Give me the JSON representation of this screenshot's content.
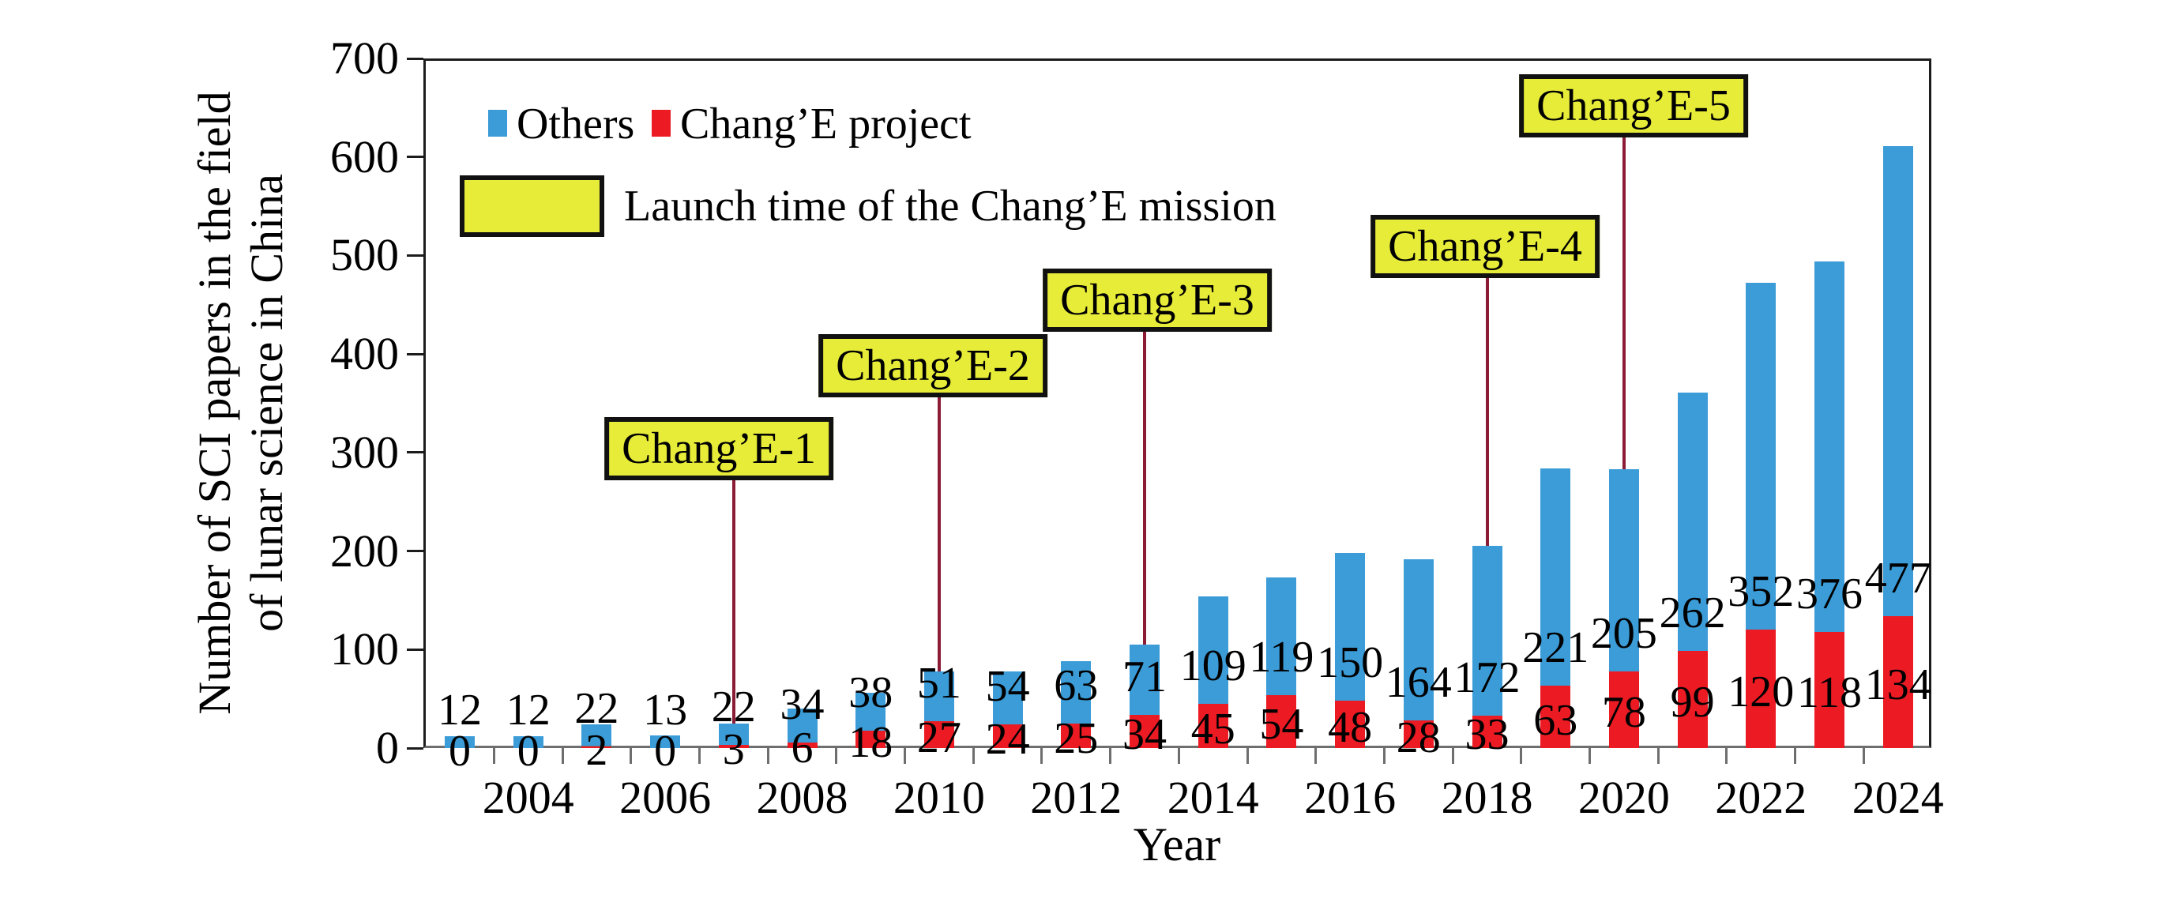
{
  "chart_data": {
    "type": "bar",
    "stacked": true,
    "xlabel": "Year",
    "ylabel": "Number of SCI papers in the field of lunar science in China",
    "ylabel_lines": [
      "Number of SCI papers in the field",
      "of lunar science in China"
    ],
    "ylim": [
      0,
      700
    ],
    "yticks": [
      0,
      100,
      200,
      300,
      400,
      500,
      600,
      700
    ],
    "years": [
      2003,
      2004,
      2005,
      2006,
      2007,
      2008,
      2009,
      2010,
      2011,
      2012,
      2013,
      2014,
      2015,
      2016,
      2017,
      2018,
      2019,
      2020,
      2021,
      2022,
      2023,
      2024
    ],
    "xtick_labels": [
      "2004",
      "2006",
      "2008",
      "2010",
      "2012",
      "2014",
      "2016",
      "2018",
      "2020",
      "2022",
      "2024"
    ],
    "series": [
      {
        "name": "Others",
        "color": "#3B9CD8",
        "values": [
          12,
          12,
          22,
          13,
          22,
          34,
          38,
          51,
          54,
          63,
          71,
          109,
          119,
          150,
          164,
          172,
          221,
          205,
          262,
          352,
          376,
          477
        ]
      },
      {
        "name": "Chang’E project",
        "color": "#EC1B23",
        "values": [
          0,
          0,
          2,
          0,
          3,
          6,
          18,
          27,
          24,
          25,
          34,
          45,
          54,
          48,
          28,
          33,
          63,
          78,
          99,
          120,
          118,
          134
        ]
      }
    ],
    "grid": false,
    "legend_position": "top-left",
    "launch_legend_label": "Launch time of the Chang’E mission",
    "annotations": [
      {
        "label": "Chang’E-1",
        "year": 2007
      },
      {
        "label": "Chang’E-2",
        "year": 2010
      },
      {
        "label": "Chang’E-3",
        "year": 2013
      },
      {
        "label": "Chang’E-4",
        "year": 2018
      },
      {
        "label": "Chang’E-5",
        "year": 2020
      }
    ],
    "annotation_box_color": "#E7EC39",
    "annotation_line_color": "#8C1C35",
    "colors": {
      "others_bar": "#3B9CD8",
      "change_bar": "#EC1B23",
      "frame": "#1c1c1c",
      "baseline": "#6e6e6e"
    }
  }
}
